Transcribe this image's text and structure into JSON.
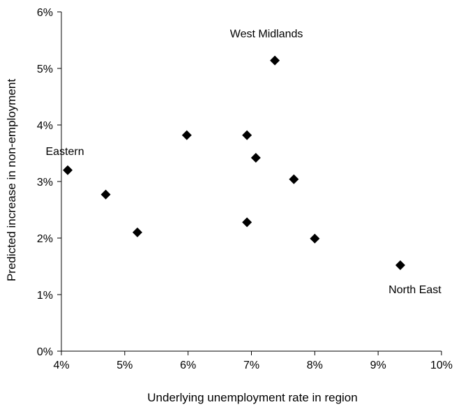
{
  "chart_data": {
    "type": "scatter",
    "title": "",
    "xlabel": "Underlying unemployment rate in region",
    "ylabel": "Predicted increase in non-employment",
    "xlim": [
      4,
      10
    ],
    "ylim": [
      0,
      6
    ],
    "x_ticks": [
      4,
      5,
      6,
      7,
      8,
      9,
      10
    ],
    "y_ticks": [
      0,
      1,
      2,
      3,
      4,
      5,
      6
    ],
    "x_tick_labels": [
      "4%",
      "5%",
      "6%",
      "7%",
      "8%",
      "9%",
      "10%"
    ],
    "y_tick_labels": [
      "0%",
      "1%",
      "2%",
      "3%",
      "4%",
      "5%",
      "6%"
    ],
    "grid": false,
    "legend": "none",
    "marker": "diamond",
    "marker_color": "#000000",
    "points": [
      {
        "x": 4.1,
        "y": 3.2
      },
      {
        "x": 4.7,
        "y": 2.77
      },
      {
        "x": 5.2,
        "y": 2.1
      },
      {
        "x": 5.98,
        "y": 3.82
      },
      {
        "x": 6.93,
        "y": 3.82
      },
      {
        "x": 6.93,
        "y": 2.28
      },
      {
        "x": 7.07,
        "y": 3.42
      },
      {
        "x": 7.37,
        "y": 5.14
      },
      {
        "x": 7.67,
        "y": 3.04
      },
      {
        "x": 8.0,
        "y": 1.99
      },
      {
        "x": 9.35,
        "y": 1.52
      }
    ],
    "annotations": [
      {
        "text": "West Midlands",
        "x": 7.37,
        "y": 5.14
      },
      {
        "text": "Eastern",
        "x": 4.1,
        "y": 3.2
      },
      {
        "text": "North East",
        "x": 9.35,
        "y": 1.52
      }
    ]
  }
}
